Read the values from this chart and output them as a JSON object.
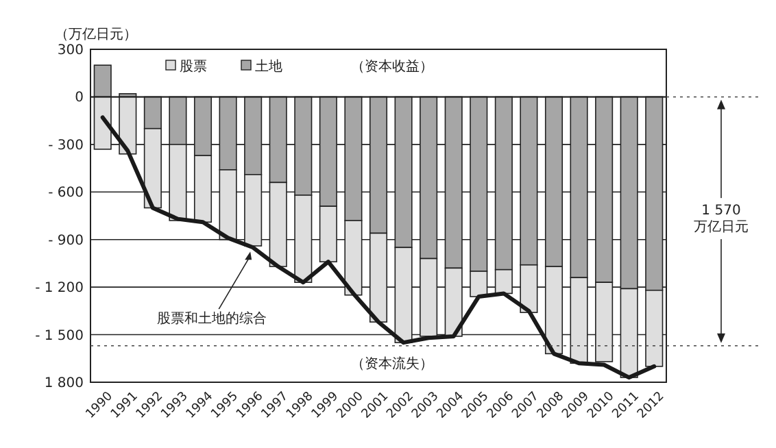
{
  "chart_data": {
    "type": "bar",
    "stacked": true,
    "ylabel": "（万亿日元）",
    "categories": [
      "1990",
      "1991",
      "1992",
      "1993",
      "1994",
      "1995",
      "1996",
      "1997",
      "1998",
      "1999",
      "2000",
      "2001",
      "2002",
      "2003",
      "2004",
      "2005",
      "2006",
      "2007",
      "2008",
      "2009",
      "2010",
      "2011",
      "2012"
    ],
    "series": [
      {
        "name": "土地",
        "color": "#a6a6a6",
        "values": [
          200,
          20,
          -200,
          -300,
          -370,
          -460,
          -490,
          -540,
          -620,
          -690,
          -780,
          -860,
          -950,
          -1020,
          -1080,
          -1100,
          -1090,
          -1060,
          -1070,
          -1140,
          -1170,
          -1210,
          -1220
        ]
      },
      {
        "name": "股票",
        "color": "#dedede",
        "values": [
          -330,
          -360,
          -500,
          -480,
          -420,
          -440,
          -450,
          -530,
          -550,
          -350,
          -470,
          -560,
          -600,
          -490,
          -430,
          -160,
          -150,
          -300,
          -550,
          -540,
          -500,
          -560,
          -480
        ]
      },
      {
        "type": "line",
        "color": "#1a1a1a",
        "values": [
          -130,
          -340,
          -700,
          -770,
          -790,
          -890,
          -950,
          -1070,
          -1170,
          -1040,
          -1240,
          -1420,
          -1550,
          -1520,
          -1510,
          -1260,
          -1240,
          -1350,
          -1620,
          -1680,
          -1690,
          -1770,
          -1700
        ]
      }
    ],
    "ylim": [
      -1800,
      300
    ],
    "yticks": [
      300,
      0,
      {
        "value": -300,
        "label": "- 300"
      },
      {
        "value": -600,
        "label": "- 600"
      },
      {
        "value": -900,
        "label": "- 900"
      },
      {
        "value": -1200,
        "label": "- 1 200"
      },
      {
        "value": -1500,
        "label": "- 1 500"
      },
      {
        "value": -1800,
        "label": "1 800"
      }
    ],
    "grid": "y",
    "legend": "top",
    "line_style": "solid",
    "ref_lines": [
      {
        "axis": "y",
        "value": -1570,
        "line_style": "dotted"
      }
    ],
    "annotations": [
      "（资本收益）",
      "（资本流失）",
      {
        "text": "股票和土地的综合",
        "x": "1996",
        "y": -950
      },
      "1 570 万亿日元"
    ]
  }
}
